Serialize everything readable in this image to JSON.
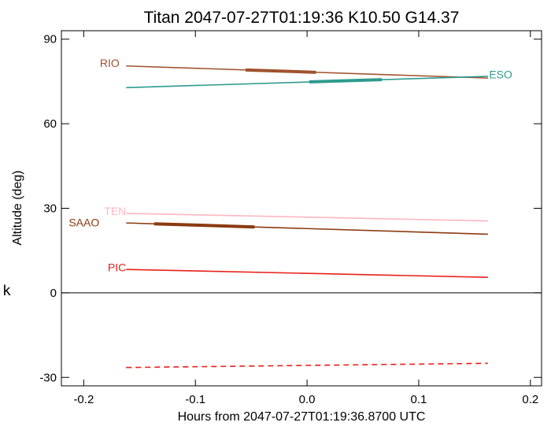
{
  "chart_data": {
    "type": "line",
    "title": "Titan 2047-07-27T01:19:36  K10.50  G14.37",
    "xlabel": "Hours from 2047-07-27T01:19:36.8700 UTC",
    "ylabel": "Altitude (deg)",
    "xlim": [
      -0.22,
      0.21
    ],
    "ylim": [
      -33,
      93
    ],
    "xticks": [
      -0.2,
      -0.1,
      0.0,
      0.1,
      0.2
    ],
    "xtick_labels": [
      "-0.2",
      "-0.1",
      "0.0",
      "0.1",
      "0.2"
    ],
    "yticks": [
      -30,
      0,
      30,
      60,
      90
    ],
    "ytick_labels": [
      "-30",
      "0",
      "30",
      "60",
      "90"
    ],
    "zero_line": 0,
    "side_mark": "k",
    "series": [
      {
        "name": "RIO",
        "color": "#a0522d",
        "x": [
          -0.162,
          0.162
        ],
        "y": [
          80.5,
          76.2
        ],
        "thick": [
          -0.055,
          0.008
        ],
        "label_x": -0.168,
        "label_y": 81.5,
        "label_anchor": "end"
      },
      {
        "name": "ESO",
        "color": "#2e9b8f",
        "x": [
          -0.162,
          0.162
        ],
        "y": [
          72.8,
          76.8
        ],
        "thick": [
          0.002,
          0.067
        ],
        "label_x": 0.163,
        "label_y": 77.5,
        "label_anchor": "start"
      },
      {
        "name": "TEN",
        "color": "#ffb6c1",
        "x": [
          -0.162,
          0.162
        ],
        "y": [
          28.2,
          25.5
        ],
        "thick": null,
        "label_x": -0.162,
        "label_y": 29.0,
        "label_anchor": "end"
      },
      {
        "name": "SAAO",
        "color": "#8b3a0f",
        "x": [
          -0.162,
          0.162
        ],
        "y": [
          24.8,
          20.8
        ],
        "thick": [
          -0.137,
          -0.047
        ],
        "label_x": -0.186,
        "label_y": 25.0,
        "label_anchor": "end"
      },
      {
        "name": "PIC",
        "color": "#e8201a",
        "x": [
          -0.162,
          0.162
        ],
        "y": [
          8.3,
          5.5
        ],
        "thick": null,
        "label_x": -0.162,
        "label_y": 9.0,
        "label_anchor": "end"
      },
      {
        "name": "",
        "color": "#e8201a",
        "dashed": true,
        "x": [
          -0.162,
          0.162
        ],
        "y": [
          -26.5,
          -25.0
        ],
        "thick": null
      }
    ]
  }
}
